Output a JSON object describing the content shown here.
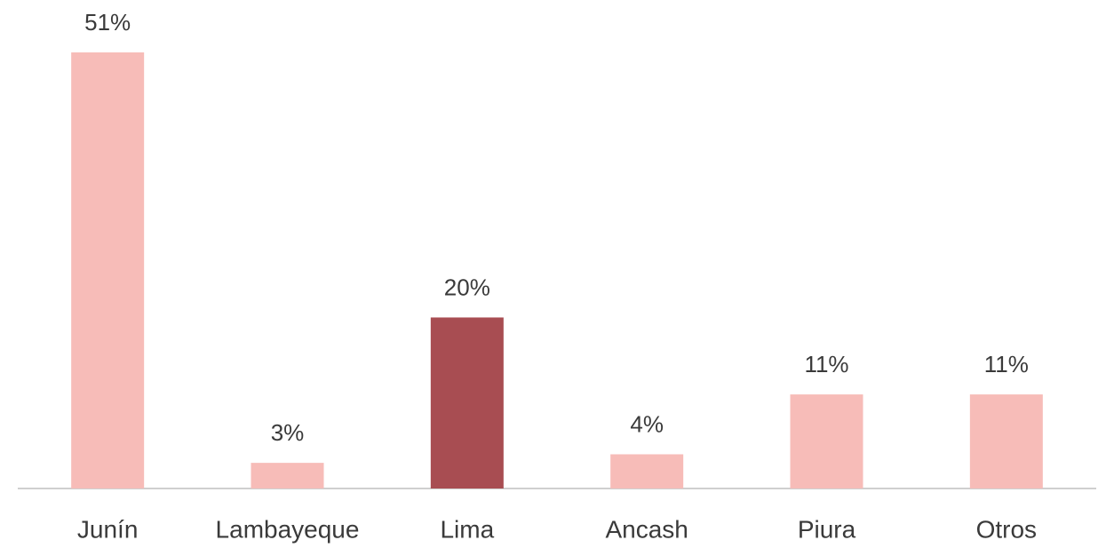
{
  "chart_data": {
    "type": "bar",
    "categories": [
      "Junín",
      "Lambayeque",
      "Lima",
      "Ancash",
      "Piura",
      "Otros"
    ],
    "values": [
      51,
      3,
      20,
      4,
      11,
      11
    ],
    "value_labels": [
      "51%",
      "3%",
      "20%",
      "4%",
      "11%",
      "11%"
    ],
    "colors": [
      "#f7bcb8",
      "#f7bcb8",
      "#a84d52",
      "#f7bcb8",
      "#f7bcb8",
      "#f7bcb8"
    ]
  }
}
